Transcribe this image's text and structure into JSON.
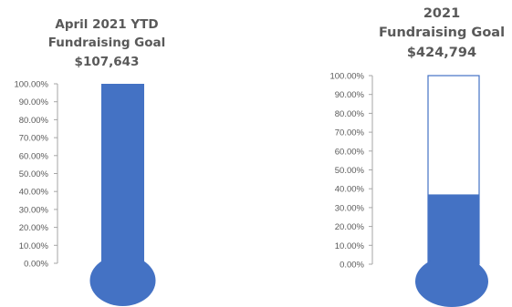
{
  "colors": {
    "fill": "#4472c4",
    "axis": "#a6a6a6",
    "text": "#595959",
    "empty_tube": "#ffffff"
  },
  "chart_data": [
    {
      "type": "bar",
      "title_lines": [
        "April 2021 YTD",
        "Fundraising Goal",
        "$107,643"
      ],
      "ylim": [
        0,
        1
      ],
      "yticks": [
        0,
        0.1,
        0.2,
        0.3,
        0.4,
        0.5,
        0.6,
        0.7,
        0.8,
        0.9,
        1.0
      ],
      "ytick_labels": [
        "0.00%",
        "10.00%",
        "20.00%",
        "30.00%",
        "40.00%",
        "50.00%",
        "60.00%",
        "70.00%",
        "80.00%",
        "90.00%",
        "100.00%"
      ],
      "values": [
        1.0
      ]
    },
    {
      "type": "bar",
      "title_lines": [
        "2021",
        "Fundraising Goal",
        "$424,794"
      ],
      "ylim": [
        0,
        1
      ],
      "yticks": [
        0,
        0.1,
        0.2,
        0.3,
        0.4,
        0.5,
        0.6,
        0.7,
        0.8,
        0.9,
        1.0
      ],
      "ytick_labels": [
        "0.00%",
        "10.00%",
        "20.00%",
        "30.00%",
        "40.00%",
        "50.00%",
        "60.00%",
        "70.00%",
        "80.00%",
        "90.00%",
        "100.00%"
      ],
      "values": [
        0.37
      ]
    }
  ]
}
